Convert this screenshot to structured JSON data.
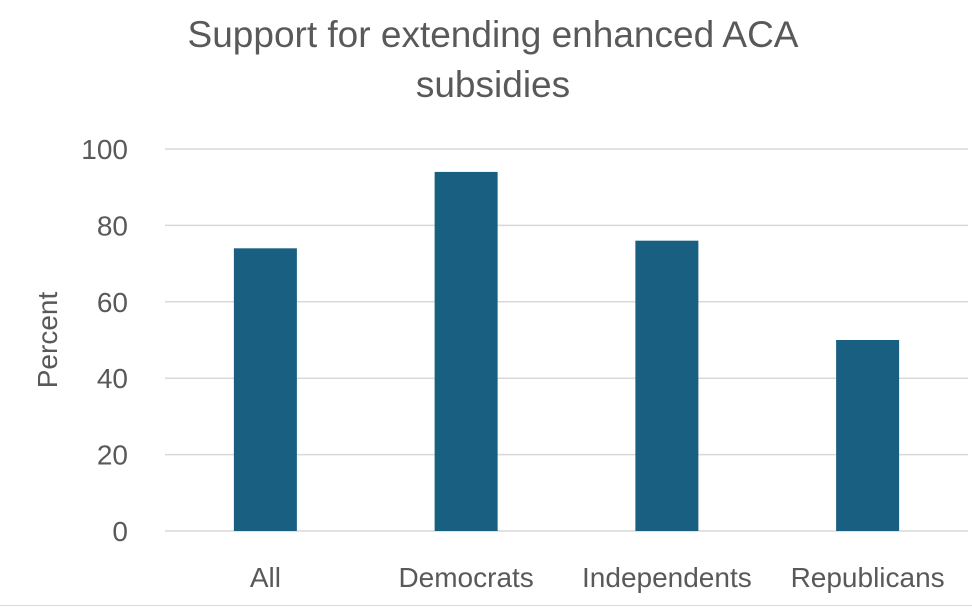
{
  "chart_data": {
    "type": "bar",
    "title_lines": [
      "Support for extending enhanced ACA",
      "subsidies"
    ],
    "xlabel": "",
    "ylabel": "Percent",
    "categories": [
      "All",
      "Democrats",
      "Independents",
      "Republicans"
    ],
    "values": [
      74,
      94,
      76,
      50
    ],
    "ylim": [
      0,
      100
    ],
    "yticks": [
      0,
      20,
      40,
      60,
      80,
      100
    ],
    "ytick_labels": [
      "0",
      "20",
      "40",
      "60",
      "80",
      "100"
    ],
    "grid": true,
    "legend": "none",
    "colors": {
      "bar": "#185F82",
      "grid": "#D9D9D9",
      "text": "#595959"
    }
  }
}
